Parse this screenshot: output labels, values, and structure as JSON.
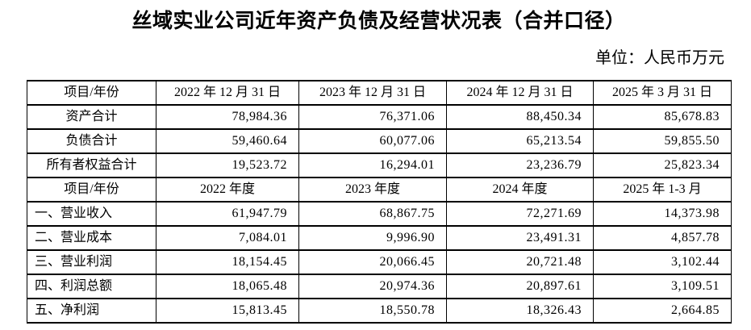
{
  "document": {
    "title": "丝域实业公司近年资产负债及经营状况表（合并口径）",
    "unit_label": "单位：人民币万元"
  },
  "table": {
    "balance_header": [
      "项目/年份",
      "2022 年 12 月 31 日",
      "2023 年 12 月 31 日",
      "2024 年 12 月 31 日",
      "2025 年 3 月 31 日"
    ],
    "balance_rows": [
      {
        "label": "资产合计",
        "values": [
          "78,984.36",
          "76,371.06",
          "88,450.34",
          "85,678.83"
        ]
      },
      {
        "label": "负债合计",
        "values": [
          "59,460.64",
          "60,077.06",
          "65,213.54",
          "59,855.50"
        ]
      },
      {
        "label": "所有者权益合计",
        "values": [
          "19,523.72",
          "16,294.01",
          "23,236.79",
          "25,823.34"
        ]
      }
    ],
    "income_header": [
      "项目/年份",
      "2022 年度",
      "2023 年度",
      "2024 年度",
      "2025 年 1-3 月"
    ],
    "income_rows": [
      {
        "label": "一、营业收入",
        "values": [
          "61,947.79",
          "68,867.75",
          "72,271.69",
          "14,373.98"
        ]
      },
      {
        "label": "二、营业成本",
        "values": [
          "7,084.01",
          "9,996.90",
          "23,491.31",
          "4,857.78"
        ]
      },
      {
        "label": "三、营业利润",
        "values": [
          "18,154.45",
          "20,066.45",
          "20,721.48",
          "3,102.44"
        ]
      },
      {
        "label": "四、利润总额",
        "values": [
          "18,065.48",
          "20,974.36",
          "20,897.61",
          "3,109.51"
        ]
      },
      {
        "label": "五、净利润",
        "values": [
          "15,813.45",
          "18,550.78",
          "18,326.43",
          "2,664.85"
        ]
      }
    ]
  }
}
